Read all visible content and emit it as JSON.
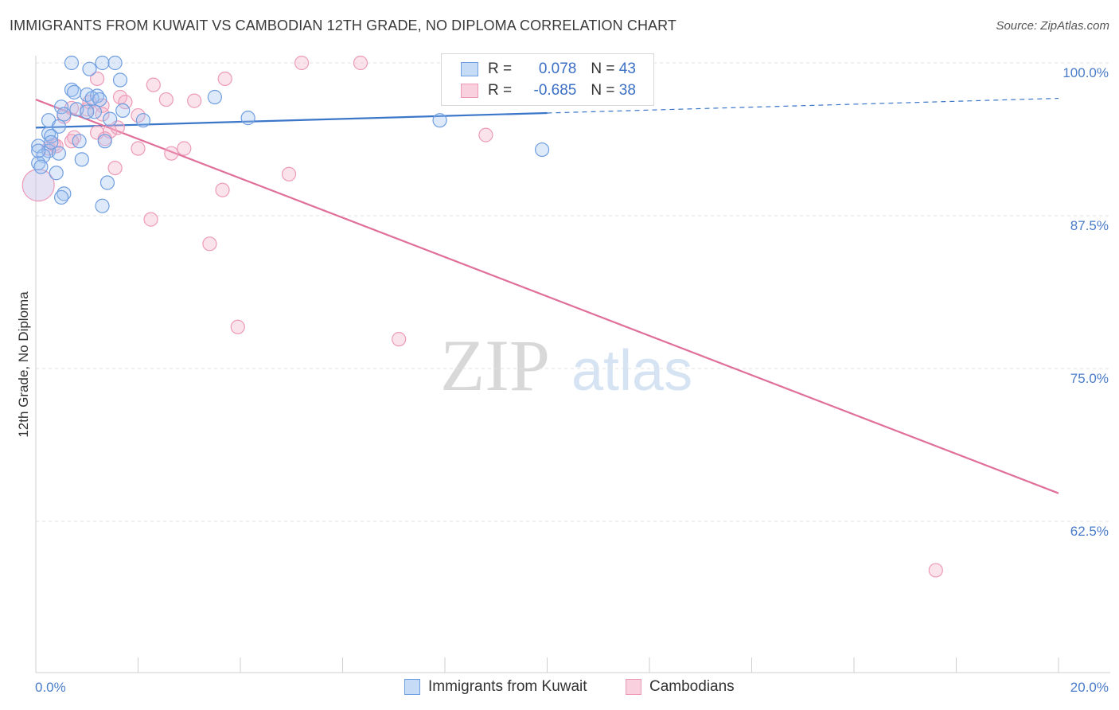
{
  "title": "IMMIGRANTS FROM KUWAIT VS CAMBODIAN 12TH GRADE, NO DIPLOMA CORRELATION CHART",
  "source": "Source: ZipAtlas.com",
  "watermark": {
    "zip": "ZIP",
    "atlas": "atlas"
  },
  "colors": {
    "blue": "#3b76c9",
    "blue_fill": "rgba(160,196,240,0.35)",
    "blue_stroke": "#6f9ee0",
    "pink": "#e0709a",
    "pink_fill": "rgba(244,176,200,0.35)",
    "pink_stroke": "#ec9ab8",
    "axis_text": "#4a7cc9"
  },
  "legend": {
    "rows": [
      {
        "r_label": "R = ",
        "r_value": "0.078",
        "n_label": "N = ",
        "n_value": "43"
      },
      {
        "r_label": "R = ",
        "r_value": "-0.685",
        "n_label": "N = ",
        "n_value": "38"
      }
    ]
  },
  "bottom_legend": [
    "Immigrants from Kuwait",
    "Cambodians"
  ],
  "chart_data": {
    "type": "scatter",
    "title": "IMMIGRANTS FROM KUWAIT VS CAMBODIAN 12TH GRADE, NO DIPLOMA CORRELATION CHART",
    "xlabel": "",
    "ylabel": "12th Grade, No Diploma",
    "xlim": [
      0,
      20
    ],
    "ylim": [
      50,
      101.5
    ],
    "x_tick_labels": [
      "0.0%",
      "20.0%"
    ],
    "y_ticks": [
      62.5,
      75.0,
      87.5,
      100.0
    ],
    "y_tick_labels": [
      "62.5%",
      "75.0%",
      "87.5%",
      "100.0%"
    ],
    "series": [
      {
        "name": "Immigrants from Kuwait",
        "R": 0.078,
        "N": 43,
        "trend": {
          "x0": 0,
          "y0": 94.7,
          "x1": 10,
          "y1": 95.9,
          "dashed_to_x": 20,
          "dashed_to_y": 97.1
        },
        "points": [
          [
            0.7,
            100
          ],
          [
            1.3,
            100
          ],
          [
            1.55,
            100
          ],
          [
            1.05,
            99.5
          ],
          [
            1.65,
            98.6
          ],
          [
            0.7,
            97.8
          ],
          [
            0.75,
            97.6
          ],
          [
            1.0,
            97.4
          ],
          [
            1.2,
            97.3
          ],
          [
            1.1,
            97.1
          ],
          [
            1.25,
            97.0
          ],
          [
            0.5,
            96.4
          ],
          [
            1.15,
            96.0
          ],
          [
            1.7,
            96.1
          ],
          [
            0.55,
            95.8
          ],
          [
            1.45,
            95.4
          ],
          [
            2.1,
            95.3
          ],
          [
            3.5,
            97.2
          ],
          [
            4.15,
            95.5
          ],
          [
            0.25,
            95.3
          ],
          [
            0.45,
            94.8
          ],
          [
            0.25,
            94.2
          ],
          [
            0.3,
            94.0
          ],
          [
            0.85,
            93.6
          ],
          [
            1.35,
            93.6
          ],
          [
            0.05,
            93.2
          ],
          [
            0.25,
            92.8
          ],
          [
            0.45,
            92.6
          ],
          [
            0.15,
            92.4
          ],
          [
            0.9,
            92.1
          ],
          [
            0.05,
            91.8
          ],
          [
            0.1,
            91.5
          ],
          [
            0.4,
            91.0
          ],
          [
            1.4,
            90.2
          ],
          [
            0.55,
            89.3
          ],
          [
            0.5,
            89.0
          ],
          [
            1.3,
            88.3
          ],
          [
            7.9,
            95.3
          ],
          [
            9.9,
            92.9
          ],
          [
            0.8,
            96.2
          ],
          [
            0.3,
            93.5
          ],
          [
            1.0,
            96.0
          ],
          [
            0.05,
            92.8
          ]
        ]
      },
      {
        "name": "Cambodians",
        "R": -0.685,
        "N": 38,
        "trend": {
          "x0": 0,
          "y0": 97.0,
          "x1": 20,
          "y1": 64.8
        },
        "points": [
          [
            5.2,
            100
          ],
          [
            6.35,
            100
          ],
          [
            1.2,
            98.7
          ],
          [
            2.3,
            98.2
          ],
          [
            3.7,
            98.7
          ],
          [
            1.65,
            97.2
          ],
          [
            1.75,
            96.8
          ],
          [
            2.55,
            97.0
          ],
          [
            3.1,
            96.9
          ],
          [
            1.3,
            96.5
          ],
          [
            1.0,
            96.2
          ],
          [
            2.0,
            95.7
          ],
          [
            0.55,
            95.6
          ],
          [
            1.45,
            94.4
          ],
          [
            1.2,
            94.3
          ],
          [
            0.75,
            93.9
          ],
          [
            1.35,
            93.8
          ],
          [
            0.7,
            93.6
          ],
          [
            0.35,
            93.3
          ],
          [
            0.25,
            93.0
          ],
          [
            2.0,
            93.0
          ],
          [
            2.9,
            93.0
          ],
          [
            2.65,
            92.6
          ],
          [
            1.55,
            91.4
          ],
          [
            4.95,
            90.9
          ],
          [
            3.65,
            89.6
          ],
          [
            2.25,
            87.2
          ],
          [
            3.4,
            85.2
          ],
          [
            3.95,
            78.4
          ],
          [
            7.1,
            77.4
          ],
          [
            8.8,
            94.1
          ],
          [
            17.6,
            58.5
          ],
          [
            0.05,
            90.0
          ],
          [
            0.4,
            93.2
          ],
          [
            0.7,
            96.3
          ],
          [
            1.6,
            94.7
          ],
          [
            1.05,
            96.8
          ],
          [
            1.3,
            95.8
          ]
        ]
      }
    ]
  }
}
